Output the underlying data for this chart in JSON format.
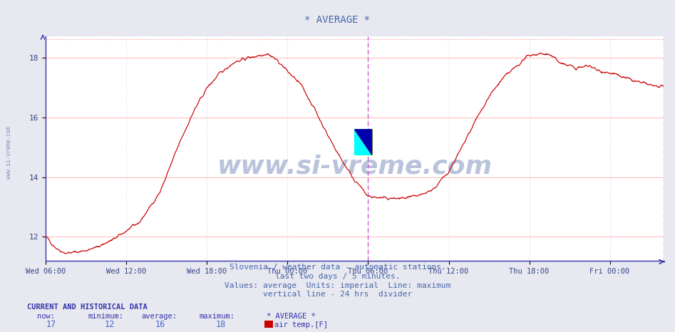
{
  "title": "* AVERAGE *",
  "title_color": "#4466aa",
  "title_fontsize": 10,
  "bg_color": "#e8e8f0",
  "plot_bg_color": "#ffffff",
  "x_labels": [
    "Wed 06:00",
    "Wed 12:00",
    "Wed 18:00",
    "Thu 00:00",
    "Thu 06:00",
    "Thu 12:00",
    "Thu 18:00",
    "Fri 00:00"
  ],
  "y_ticks": [
    12,
    14,
    16,
    18
  ],
  "ylim": [
    11.2,
    18.72
  ],
  "line_color": "#cc0000",
  "max_line_color": "#ff8888",
  "max_line_y": 18.62,
  "vline_color": "#cc44cc",
  "grid_color": "#ffaaaa",
  "grid_vcolor": "#ccccdd",
  "footer_lines": [
    "Slovenia / weather data - automatic stations.",
    "last two days / 5 minutes.",
    "Values: average  Units: imperial  Line: maximum",
    "vertical line - 24 hrs  divider"
  ],
  "footer_color": "#4466aa",
  "footer_fontsize": 8.5,
  "left_label": "www.si-vreme.com",
  "left_label_color": "#8888bb",
  "watermark_text": "www.si-vreme.com",
  "watermark_color": "#1a3a8a",
  "watermark_alpha": 0.3,
  "total_hours": 46.0,
  "x_tick_hours": [
    0,
    6,
    12,
    18,
    24,
    30,
    36,
    42
  ],
  "keypoints_h": [
    0,
    0.3,
    0.7,
    1.0,
    1.5,
    2.5,
    3.5,
    5,
    7,
    8.5,
    10,
    11,
    12,
    13,
    14,
    15,
    16,
    16.5,
    17,
    17.5,
    18,
    19,
    20,
    21,
    22,
    23,
    24,
    25,
    26,
    27,
    28,
    29,
    30,
    31,
    32,
    33,
    34,
    35,
    36,
    37,
    37.5,
    38,
    38.5,
    39,
    39.5,
    40,
    40.5,
    41,
    41.5,
    42,
    43,
    44,
    45,
    46
  ],
  "keypoints_v": [
    12.0,
    11.85,
    11.65,
    11.55,
    11.45,
    11.5,
    11.6,
    11.9,
    12.5,
    13.5,
    15.2,
    16.2,
    17.0,
    17.5,
    17.85,
    18.0,
    18.1,
    18.15,
    18.0,
    17.8,
    17.55,
    17.1,
    16.3,
    15.4,
    14.6,
    13.9,
    13.35,
    13.3,
    13.28,
    13.3,
    13.4,
    13.65,
    14.2,
    15.0,
    15.9,
    16.7,
    17.3,
    17.7,
    18.1,
    18.15,
    18.1,
    17.95,
    17.8,
    17.75,
    17.65,
    17.7,
    17.75,
    17.6,
    17.55,
    17.5,
    17.35,
    17.2,
    17.1,
    17.0
  ]
}
